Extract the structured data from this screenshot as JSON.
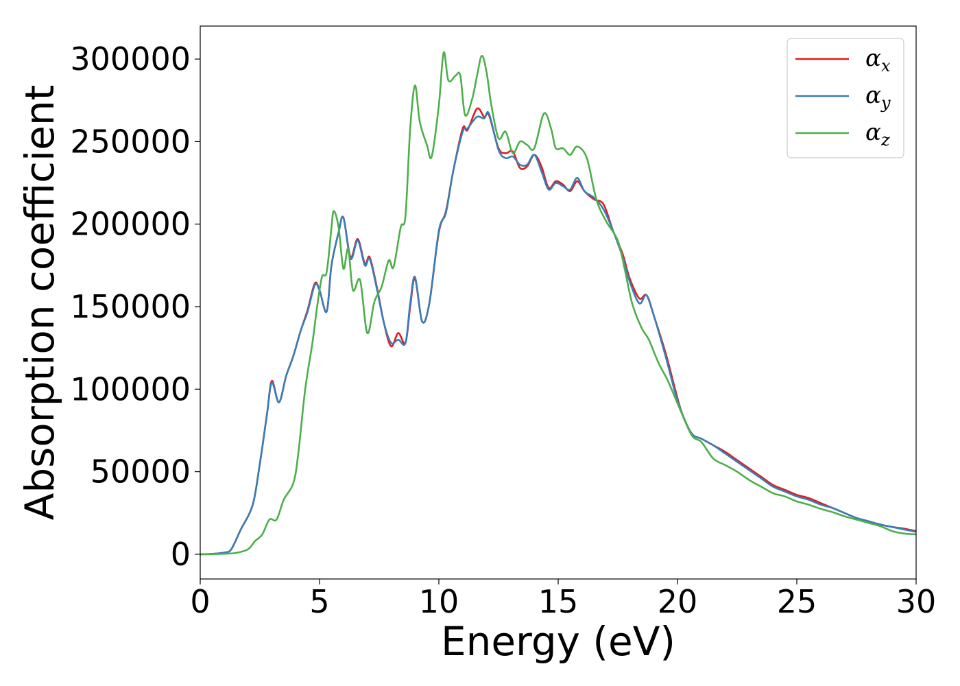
{
  "chart_data": {
    "type": "line",
    "title": "",
    "xlabel": "Energy (eV)",
    "ylabel": "Absorption coefficient",
    "xlim": [
      0,
      30
    ],
    "ylim": [
      -15000,
      320000
    ],
    "xticks": [
      0,
      5,
      10,
      15,
      20,
      25,
      30
    ],
    "yticks": [
      0,
      50000,
      100000,
      150000,
      200000,
      250000,
      300000
    ],
    "grid": false,
    "legend_position": "top-right",
    "series": [
      {
        "name": "α_x",
        "label_base": "α",
        "label_sub": "x",
        "color": "#e41a1c",
        "points": [
          [
            0,
            0
          ],
          [
            0.5,
            200
          ],
          [
            1,
            1000
          ],
          [
            1.3,
            3000
          ],
          [
            1.7,
            15000
          ],
          [
            2.2,
            30000
          ],
          [
            2.5,
            55000
          ],
          [
            2.8,
            85000
          ],
          [
            3,
            105000
          ],
          [
            3.3,
            92000
          ],
          [
            3.6,
            108000
          ],
          [
            3.9,
            120000
          ],
          [
            4.2,
            135000
          ],
          [
            4.5,
            148000
          ],
          [
            4.8,
            164000
          ],
          [
            5,
            160000
          ],
          [
            5.3,
            147000
          ],
          [
            5.5,
            175000
          ],
          [
            5.8,
            195000
          ],
          [
            6,
            204000
          ],
          [
            6.3,
            180000
          ],
          [
            6.6,
            191000
          ],
          [
            6.9,
            176000
          ],
          [
            7.1,
            180000
          ],
          [
            7.4,
            162000
          ],
          [
            7.7,
            140000
          ],
          [
            8,
            126000
          ],
          [
            8.3,
            134000
          ],
          [
            8.6,
            128000
          ],
          [
            8.8,
            150000
          ],
          [
            9,
            167000
          ],
          [
            9.3,
            141000
          ],
          [
            9.6,
            152000
          ],
          [
            10,
            195000
          ],
          [
            10.3,
            208000
          ],
          [
            10.6,
            232000
          ],
          [
            11,
            258000
          ],
          [
            11.2,
            257000
          ],
          [
            11.6,
            270000
          ],
          [
            11.9,
            265000
          ],
          [
            12.1,
            266000
          ],
          [
            12.5,
            246000
          ],
          [
            12.8,
            243000
          ],
          [
            13.1,
            244000
          ],
          [
            13.4,
            234000
          ],
          [
            13.7,
            235000
          ],
          [
            14,
            242000
          ],
          [
            14.3,
            235000
          ],
          [
            14.6,
            222000
          ],
          [
            14.9,
            226000
          ],
          [
            15.2,
            224000
          ],
          [
            15.5,
            220000
          ],
          [
            15.8,
            226000
          ],
          [
            16.1,
            220000
          ],
          [
            16.5,
            215000
          ],
          [
            16.9,
            212000
          ],
          [
            17.3,
            196000
          ],
          [
            17.7,
            182000
          ],
          [
            18,
            167000
          ],
          [
            18.4,
            155000
          ],
          [
            18.7,
            157000
          ],
          [
            19,
            145000
          ],
          [
            19.5,
            122000
          ],
          [
            19.9,
            100000
          ],
          [
            20.2,
            85000
          ],
          [
            20.6,
            73000
          ],
          [
            21,
            70000
          ],
          [
            21.5,
            66000
          ],
          [
            22,
            62000
          ],
          [
            22.5,
            57000
          ],
          [
            23,
            52000
          ],
          [
            23.5,
            47000
          ],
          [
            24,
            42000
          ],
          [
            24.5,
            39000
          ],
          [
            25,
            36000
          ],
          [
            25.5,
            34000
          ],
          [
            26,
            31000
          ],
          [
            26.5,
            28000
          ],
          [
            27,
            25000
          ],
          [
            27.5,
            22000
          ],
          [
            28,
            20000
          ],
          [
            28.5,
            18000
          ],
          [
            29,
            16500
          ],
          [
            29.5,
            15500
          ],
          [
            30,
            14000
          ]
        ]
      },
      {
        "name": "α_y",
        "label_base": "α",
        "label_sub": "y",
        "color": "#377eb8",
        "points": [
          [
            0,
            0
          ],
          [
            0.5,
            200
          ],
          [
            1,
            1000
          ],
          [
            1.3,
            3000
          ],
          [
            1.7,
            15000
          ],
          [
            2.2,
            30000
          ],
          [
            2.5,
            55000
          ],
          [
            2.8,
            85000
          ],
          [
            3,
            104000
          ],
          [
            3.3,
            92000
          ],
          [
            3.6,
            108000
          ],
          [
            3.9,
            120000
          ],
          [
            4.2,
            135000
          ],
          [
            4.5,
            147000
          ],
          [
            4.8,
            163000
          ],
          [
            5,
            160000
          ],
          [
            5.3,
            147000
          ],
          [
            5.5,
            175000
          ],
          [
            5.8,
            195000
          ],
          [
            6,
            204000
          ],
          [
            6.3,
            179000
          ],
          [
            6.6,
            190000
          ],
          [
            6.9,
            175000
          ],
          [
            7.1,
            179000
          ],
          [
            7.4,
            161000
          ],
          [
            7.7,
            140000
          ],
          [
            8,
            128000
          ],
          [
            8.3,
            130000
          ],
          [
            8.6,
            128000
          ],
          [
            8.8,
            152000
          ],
          [
            9,
            168000
          ],
          [
            9.3,
            141000
          ],
          [
            9.6,
            152000
          ],
          [
            10,
            196000
          ],
          [
            10.3,
            207000
          ],
          [
            10.6,
            232000
          ],
          [
            11,
            256000
          ],
          [
            11.2,
            258000
          ],
          [
            11.6,
            265000
          ],
          [
            11.9,
            264000
          ],
          [
            12.1,
            267000
          ],
          [
            12.5,
            245000
          ],
          [
            12.8,
            240000
          ],
          [
            13.1,
            241000
          ],
          [
            13.4,
            236000
          ],
          [
            13.7,
            236000
          ],
          [
            14,
            242000
          ],
          [
            14.3,
            232000
          ],
          [
            14.6,
            221000
          ],
          [
            14.9,
            225000
          ],
          [
            15.2,
            223000
          ],
          [
            15.5,
            221000
          ],
          [
            15.8,
            228000
          ],
          [
            16.1,
            220000
          ],
          [
            16.5,
            216000
          ],
          [
            16.9,
            209000
          ],
          [
            17.3,
            196000
          ],
          [
            17.7,
            180000
          ],
          [
            18,
            165000
          ],
          [
            18.4,
            152000
          ],
          [
            18.7,
            157000
          ],
          [
            19,
            145000
          ],
          [
            19.5,
            120000
          ],
          [
            19.9,
            98000
          ],
          [
            20.2,
            85000
          ],
          [
            20.6,
            73000
          ],
          [
            21,
            70000
          ],
          [
            21.5,
            66000
          ],
          [
            22,
            61000
          ],
          [
            22.5,
            56000
          ],
          [
            23,
            51000
          ],
          [
            23.5,
            46000
          ],
          [
            24,
            41000
          ],
          [
            24.5,
            38000
          ],
          [
            25,
            35000
          ],
          [
            25.5,
            33000
          ],
          [
            26,
            30000
          ],
          [
            26.5,
            28000
          ],
          [
            27,
            25000
          ],
          [
            27.5,
            22000
          ],
          [
            28,
            20000
          ],
          [
            28.5,
            18000
          ],
          [
            29,
            16500
          ],
          [
            29.5,
            15000
          ],
          [
            30,
            13500
          ]
        ]
      },
      {
        "name": "α_z",
        "label_base": "α",
        "label_sub": "z",
        "color": "#4daf4a",
        "points": [
          [
            0,
            0
          ],
          [
            0.5,
            100
          ],
          [
            1,
            300
          ],
          [
            1.5,
            800
          ],
          [
            2,
            3000
          ],
          [
            2.3,
            8000
          ],
          [
            2.6,
            12000
          ],
          [
            2.9,
            21000
          ],
          [
            3.2,
            21000
          ],
          [
            3.5,
            33000
          ],
          [
            3.9,
            43000
          ],
          [
            4.1,
            60000
          ],
          [
            4.4,
            100000
          ],
          [
            4.7,
            128000
          ],
          [
            4.9,
            150000
          ],
          [
            5.1,
            168000
          ],
          [
            5.3,
            171000
          ],
          [
            5.5,
            198000
          ],
          [
            5.6,
            208000
          ],
          [
            5.8,
            198000
          ],
          [
            6,
            173000
          ],
          [
            6.2,
            185000
          ],
          [
            6.4,
            160000
          ],
          [
            6.7,
            166000
          ],
          [
            7,
            134000
          ],
          [
            7.3,
            153000
          ],
          [
            7.6,
            162000
          ],
          [
            7.9,
            178000
          ],
          [
            8.1,
            174000
          ],
          [
            8.4,
            198000
          ],
          [
            8.6,
            205000
          ],
          [
            8.8,
            258000
          ],
          [
            9,
            284000
          ],
          [
            9.2,
            262000
          ],
          [
            9.5,
            248000
          ],
          [
            9.7,
            241000
          ],
          [
            10,
            272000
          ],
          [
            10.2,
            304000
          ],
          [
            10.4,
            287000
          ],
          [
            10.7,
            290000
          ],
          [
            10.9,
            290000
          ],
          [
            11.1,
            266000
          ],
          [
            11.4,
            276000
          ],
          [
            11.6,
            290000
          ],
          [
            11.8,
            302000
          ],
          [
            12,
            292000
          ],
          [
            12.2,
            272000
          ],
          [
            12.5,
            252000
          ],
          [
            12.8,
            256000
          ],
          [
            13.1,
            243000
          ],
          [
            13.4,
            250000
          ],
          [
            13.7,
            248000
          ],
          [
            14,
            246000
          ],
          [
            14.4,
            267000
          ],
          [
            14.7,
            258000
          ],
          [
            14.9,
            246000
          ],
          [
            15.2,
            246000
          ],
          [
            15.5,
            242000
          ],
          [
            15.8,
            247000
          ],
          [
            16.2,
            240000
          ],
          [
            16.6,
            215000
          ],
          [
            17,
            202000
          ],
          [
            17.5,
            190000
          ],
          [
            17.8,
            172000
          ],
          [
            18.1,
            152000
          ],
          [
            18.5,
            137000
          ],
          [
            18.8,
            130000
          ],
          [
            19.2,
            116000
          ],
          [
            19.6,
            105000
          ],
          [
            20.1,
            88000
          ],
          [
            20.6,
            72000
          ],
          [
            21,
            68000
          ],
          [
            21.5,
            58000
          ],
          [
            22,
            54000
          ],
          [
            22.5,
            50000
          ],
          [
            23,
            45000
          ],
          [
            23.5,
            41000
          ],
          [
            24,
            37000
          ],
          [
            24.5,
            35000
          ],
          [
            25,
            32000
          ],
          [
            25.5,
            30000
          ],
          [
            26,
            27500
          ],
          [
            26.5,
            25500
          ],
          [
            27,
            23000
          ],
          [
            27.5,
            21000
          ],
          [
            28,
            19000
          ],
          [
            28.5,
            17000
          ],
          [
            29,
            14000
          ],
          [
            29.5,
            12500
          ],
          [
            30,
            12000
          ]
        ]
      }
    ]
  }
}
